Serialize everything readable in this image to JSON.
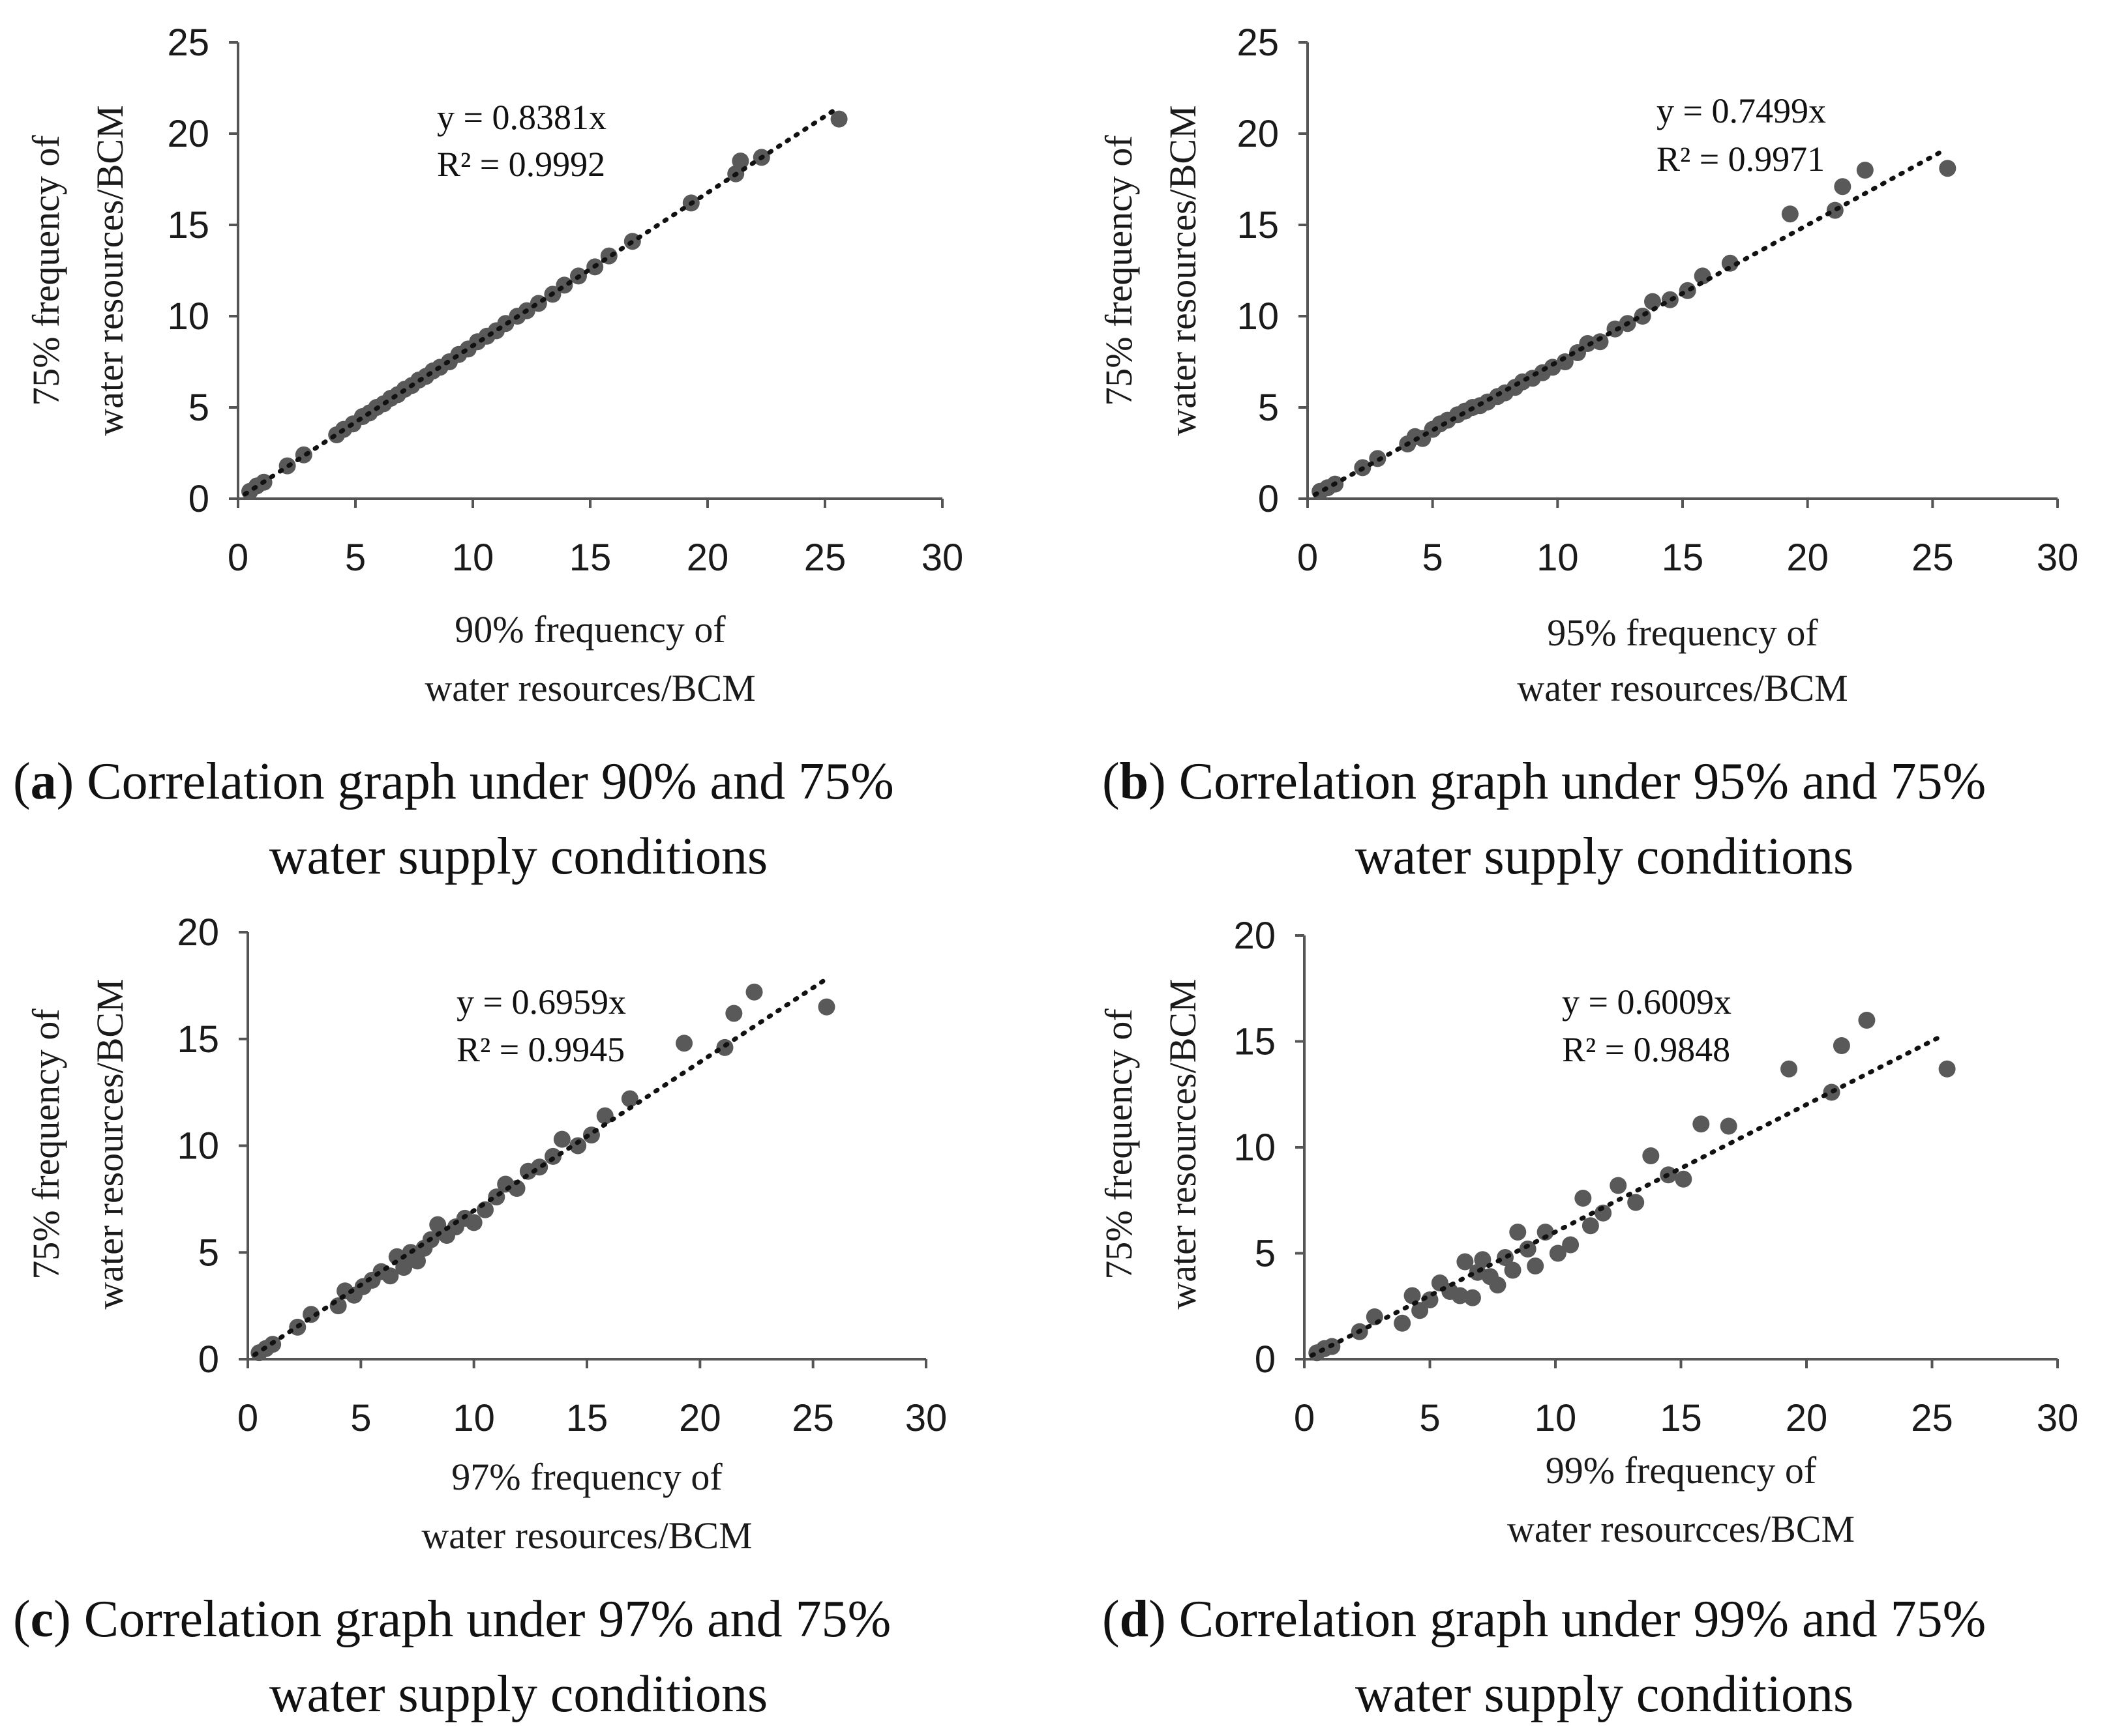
{
  "chart_data": [
    {
      "type": "scatter",
      "panel": "a",
      "xlabel": [
        "90% frequency of",
        "water resources/BCM"
      ],
      "ylabel": [
        "75% frequency of",
        "water resources/BCM"
      ],
      "xlim": [
        0,
        30
      ],
      "ylim": [
        0,
        25
      ],
      "xticks": [
        0,
        5,
        10,
        15,
        20,
        25,
        30
      ],
      "yticks": [
        0,
        5,
        10,
        15,
        20,
        25
      ],
      "trendline": {
        "slope": 0.8381,
        "x_range": [
          0.3,
          25.5
        ],
        "equation": "y = 0.8381x",
        "r2": "R² = 0.9992"
      },
      "caption": {
        "letter": "a",
        "line1": " Correlation graph under 90% and 75%",
        "line2": "water supply conditions"
      },
      "points": [
        [
          0.5,
          0.4
        ],
        [
          0.8,
          0.7
        ],
        [
          1.1,
          0.9
        ],
        [
          2.1,
          1.8
        ],
        [
          2.8,
          2.4
        ],
        [
          4.2,
          3.5
        ],
        [
          4.5,
          3.8
        ],
        [
          4.9,
          4.1
        ],
        [
          5.3,
          4.5
        ],
        [
          5.6,
          4.7
        ],
        [
          5.9,
          5.0
        ],
        [
          6.2,
          5.2
        ],
        [
          6.5,
          5.5
        ],
        [
          6.8,
          5.7
        ],
        [
          7.1,
          6.0
        ],
        [
          7.4,
          6.2
        ],
        [
          7.7,
          6.5
        ],
        [
          8.0,
          6.7
        ],
        [
          8.3,
          7.0
        ],
        [
          8.6,
          7.2
        ],
        [
          9.0,
          7.5
        ],
        [
          9.4,
          7.9
        ],
        [
          9.8,
          8.2
        ],
        [
          10.2,
          8.6
        ],
        [
          10.6,
          8.9
        ],
        [
          11.0,
          9.2
        ],
        [
          11.4,
          9.6
        ],
        [
          11.9,
          10.0
        ],
        [
          12.3,
          10.3
        ],
        [
          12.8,
          10.7
        ],
        [
          13.4,
          11.2
        ],
        [
          13.9,
          11.7
        ],
        [
          14.5,
          12.2
        ],
        [
          15.2,
          12.7
        ],
        [
          15.8,
          13.3
        ],
        [
          16.8,
          14.1
        ],
        [
          19.3,
          16.2
        ],
        [
          21.2,
          17.8
        ],
        [
          21.4,
          18.5
        ],
        [
          22.3,
          18.7
        ],
        [
          25.6,
          20.8
        ]
      ]
    },
    {
      "type": "scatter",
      "panel": "b",
      "xlabel": [
        "95% frequency of",
        "water resources/BCM"
      ],
      "ylabel": [
        "75% frequency of",
        "water resources/BCM"
      ],
      "xlim": [
        0,
        30
      ],
      "ylim": [
        0,
        25
      ],
      "xticks": [
        0,
        5,
        10,
        15,
        20,
        25,
        30
      ],
      "yticks": [
        0,
        5,
        10,
        15,
        20,
        25
      ],
      "trendline": {
        "slope": 0.7499,
        "x_range": [
          0.3,
          25.5
        ],
        "equation": "y = 0.7499x",
        "r2": "R² = 0.9971"
      },
      "caption": {
        "letter": "b",
        "line1": " Correlation graph under 95% and 75%",
        "line2": "water supply conditions"
      },
      "points": [
        [
          0.5,
          0.4
        ],
        [
          0.8,
          0.6
        ],
        [
          1.1,
          0.8
        ],
        [
          2.2,
          1.7
        ],
        [
          2.8,
          2.2
        ],
        [
          4.0,
          3.0
        ],
        [
          4.3,
          3.4
        ],
        [
          4.6,
          3.3
        ],
        [
          5.0,
          3.8
        ],
        [
          5.3,
          4.1
        ],
        [
          5.6,
          4.3
        ],
        [
          6.0,
          4.6
        ],
        [
          6.3,
          4.8
        ],
        [
          6.6,
          5.0
        ],
        [
          6.9,
          5.1
        ],
        [
          7.2,
          5.3
        ],
        [
          7.6,
          5.6
        ],
        [
          7.9,
          5.8
        ],
        [
          8.3,
          6.1
        ],
        [
          8.6,
          6.4
        ],
        [
          9.0,
          6.6
        ],
        [
          9.4,
          6.9
        ],
        [
          9.8,
          7.2
        ],
        [
          10.3,
          7.5
        ],
        [
          10.8,
          8.0
        ],
        [
          11.2,
          8.5
        ],
        [
          11.7,
          8.6
        ],
        [
          12.3,
          9.3
        ],
        [
          12.8,
          9.6
        ],
        [
          13.4,
          10.0
        ],
        [
          13.8,
          10.8
        ],
        [
          14.5,
          10.9
        ],
        [
          15.2,
          11.4
        ],
        [
          15.8,
          12.2
        ],
        [
          16.9,
          12.9
        ],
        [
          19.3,
          15.6
        ],
        [
          21.1,
          15.8
        ],
        [
          21.4,
          17.1
        ],
        [
          22.3,
          18.0
        ],
        [
          25.6,
          18.1
        ]
      ]
    },
    {
      "type": "scatter",
      "panel": "c",
      "xlabel": [
        "97% frequency of",
        "water resources/BCM"
      ],
      "ylabel": [
        "75% frequency of",
        "water resources/BCM"
      ],
      "xlim": [
        0,
        30
      ],
      "ylim": [
        0,
        20
      ],
      "xticks": [
        0,
        5,
        10,
        15,
        20,
        25,
        30
      ],
      "yticks": [
        0,
        5,
        10,
        15,
        20
      ],
      "trendline": {
        "slope": 0.6959,
        "x_range": [
          0.3,
          25.5
        ],
        "equation": "y = 0.6959x",
        "r2": "R² = 0.9945"
      },
      "caption": {
        "letter": "c",
        "line1": " Correlation graph under 97% and 75%",
        "line2": "water supply conditions"
      },
      "points": [
        [
          0.5,
          0.3
        ],
        [
          0.8,
          0.5
        ],
        [
          1.1,
          0.7
        ],
        [
          2.2,
          1.5
        ],
        [
          2.8,
          2.1
        ],
        [
          4.0,
          2.5
        ],
        [
          4.3,
          3.2
        ],
        [
          4.7,
          3.0
        ],
        [
          5.1,
          3.4
        ],
        [
          5.5,
          3.7
        ],
        [
          5.9,
          4.1
        ],
        [
          6.3,
          3.9
        ],
        [
          6.6,
          4.8
        ],
        [
          6.9,
          4.3
        ],
        [
          7.2,
          5.0
        ],
        [
          7.5,
          4.6
        ],
        [
          7.8,
          5.2
        ],
        [
          8.1,
          5.6
        ],
        [
          8.4,
          6.3
        ],
        [
          8.8,
          5.8
        ],
        [
          9.2,
          6.2
        ],
        [
          9.6,
          6.6
        ],
        [
          10.0,
          6.4
        ],
        [
          10.5,
          7.0
        ],
        [
          11.0,
          7.6
        ],
        [
          11.4,
          8.2
        ],
        [
          11.9,
          8.0
        ],
        [
          12.4,
          8.8
        ],
        [
          12.9,
          9.0
        ],
        [
          13.5,
          9.5
        ],
        [
          13.9,
          10.3
        ],
        [
          14.6,
          10.0
        ],
        [
          15.2,
          10.5
        ],
        [
          15.8,
          11.4
        ],
        [
          16.9,
          12.2
        ],
        [
          19.3,
          14.8
        ],
        [
          21.1,
          14.6
        ],
        [
          21.5,
          16.2
        ],
        [
          22.4,
          17.2
        ],
        [
          25.6,
          16.5
        ]
      ]
    },
    {
      "type": "scatter",
      "panel": "d",
      "xlabel": [
        "99% frequency of",
        "water resourcces/BCM"
      ],
      "ylabel": [
        "75% frequency of",
        "water resources/BCM"
      ],
      "xlim": [
        0,
        30
      ],
      "ylim": [
        0,
        20
      ],
      "xticks": [
        0,
        5,
        10,
        15,
        20,
        25,
        30
      ],
      "yticks": [
        0,
        5,
        10,
        15,
        20
      ],
      "trendline": {
        "slope": 0.6009,
        "x_range": [
          0.3,
          25.5
        ],
        "equation": "y = 0.6009x",
        "r2": "R² = 0.9848"
      },
      "caption": {
        "letter": "d",
        "line1": " Correlation graph under 99% and 75%",
        "line2": "water supply conditions"
      },
      "points": [
        [
          0.5,
          0.3
        ],
        [
          0.8,
          0.5
        ],
        [
          1.1,
          0.6
        ],
        [
          2.2,
          1.3
        ],
        [
          2.8,
          2.0
        ],
        [
          3.9,
          1.7
        ],
        [
          4.3,
          3.0
        ],
        [
          4.6,
          2.3
        ],
        [
          5.0,
          2.8
        ],
        [
          5.4,
          3.6
        ],
        [
          5.8,
          3.2
        ],
        [
          6.2,
          3.0
        ],
        [
          6.4,
          4.6
        ],
        [
          6.7,
          2.9
        ],
        [
          6.9,
          4.1
        ],
        [
          7.1,
          4.7
        ],
        [
          7.4,
          3.9
        ],
        [
          7.7,
          3.5
        ],
        [
          8.0,
          4.8
        ],
        [
          8.3,
          4.2
        ],
        [
          8.5,
          6.0
        ],
        [
          8.9,
          5.2
        ],
        [
          9.2,
          4.4
        ],
        [
          9.6,
          6.0
        ],
        [
          10.1,
          5.0
        ],
        [
          10.6,
          5.4
        ],
        [
          11.1,
          7.6
        ],
        [
          11.4,
          6.3
        ],
        [
          11.9,
          6.9
        ],
        [
          12.5,
          8.2
        ],
        [
          13.2,
          7.4
        ],
        [
          13.8,
          9.6
        ],
        [
          14.5,
          8.7
        ],
        [
          15.1,
          8.5
        ],
        [
          15.8,
          11.1
        ],
        [
          16.9,
          11.0
        ],
        [
          19.3,
          13.7
        ],
        [
          21.0,
          12.6
        ],
        [
          21.4,
          14.8
        ],
        [
          22.4,
          16.0
        ],
        [
          25.6,
          13.7
        ]
      ]
    }
  ]
}
